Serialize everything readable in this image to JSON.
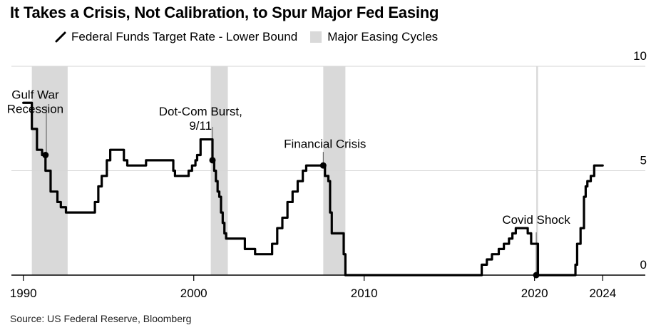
{
  "title": "It Takes a Crisis, Not Calibration, to Spur Major Fed Easing",
  "legend": {
    "line_label": "Federal Funds Target Rate - Lower Bound",
    "band_label": "Major Easing Cycles"
  },
  "source": "Source: US Federal Reserve, Bloomberg",
  "colors": {
    "line": "#000000",
    "band": "#d9d9d9",
    "grid": "#d6d6d6",
    "axis": "#000000"
  },
  "chart_data": {
    "type": "line",
    "title": "It Takes a Crisis, Not Calibration, to Spur Major Fed Easing",
    "xlabel": "",
    "ylabel": "",
    "xlim": [
      1989.3,
      2026.5
    ],
    "ylim": [
      0,
      10
    ],
    "y_axis_side": "right",
    "grid": "horizontal",
    "x_ticks": [
      {
        "value": 1990,
        "label": "1990"
      },
      {
        "value": 2000,
        "label": "2000"
      },
      {
        "value": 2010,
        "label": "2010"
      },
      {
        "value": 2020,
        "label": "2020"
      },
      {
        "value": 2024,
        "label": "2024"
      }
    ],
    "y_ticks": [
      {
        "value": 0,
        "label": "0"
      },
      {
        "value": 5,
        "label": "5"
      },
      {
        "value": 10,
        "label": "10"
      }
    ],
    "series": [
      {
        "name": "Federal Funds Target Rate - Lower Bound",
        "x": [
          1990.0,
          1990.5,
          1990.8,
          1991.0,
          1991.1,
          1991.3,
          1991.6,
          1991.8,
          1992.0,
          1992.2,
          1992.5,
          1992.6,
          1992.7,
          1994.1,
          1994.2,
          1994.4,
          1994.6,
          1994.9,
          1995.1,
          1995.6,
          1995.9,
          1996.1,
          1997.2,
          1998.7,
          1998.8,
          1998.9,
          1999.5,
          1999.7,
          1999.9,
          2000.1,
          2000.2,
          2000.4,
          2001.0,
          2001.1,
          2001.2,
          2001.3,
          2001.4,
          2001.5,
          2001.6,
          2001.7,
          2001.8,
          2001.9,
          2002.0,
          2002.9,
          2003.0,
          2003.5,
          2003.6,
          2004.5,
          2004.6,
          2004.9,
          2005.2,
          2005.5,
          2005.8,
          2006.1,
          2006.4,
          2006.6,
          2007.6,
          2007.7,
          2007.9,
          2008.0,
          2008.1,
          2008.3,
          2008.8,
          2008.9,
          2015.9,
          2016.9,
          2017.2,
          2017.5,
          2017.9,
          2018.2,
          2018.5,
          2018.7,
          2018.9,
          2019.5,
          2019.6,
          2019.8,
          2020.1,
          2020.2,
          2022.2,
          2022.4,
          2022.5,
          2022.7,
          2022.9,
          2023.0,
          2023.1,
          2023.3,
          2023.5,
          2024.0
        ],
        "values": [
          8.25,
          7.0,
          6.0,
          6.0,
          5.75,
          5.0,
          4.0,
          4.0,
          3.5,
          3.25,
          3.0,
          3.0,
          3.0,
          3.0,
          3.5,
          4.25,
          4.75,
          5.5,
          6.0,
          6.0,
          5.5,
          5.25,
          5.5,
          5.5,
          5.0,
          4.75,
          4.75,
          5.0,
          5.25,
          5.5,
          5.75,
          6.5,
          6.5,
          5.5,
          5.0,
          4.5,
          4.0,
          3.75,
          3.0,
          2.5,
          2.0,
          1.75,
          1.75,
          1.75,
          1.25,
          1.25,
          1.0,
          1.0,
          1.5,
          2.25,
          2.75,
          3.5,
          4.0,
          4.5,
          5.0,
          5.25,
          5.25,
          4.75,
          4.5,
          3.0,
          2.0,
          2.0,
          1.0,
          0.0,
          0.0,
          0.5,
          0.75,
          1.0,
          1.25,
          1.5,
          1.75,
          2.0,
          2.25,
          2.25,
          2.0,
          1.5,
          1.5,
          0.0,
          0.0,
          0.5,
          1.5,
          2.25,
          3.75,
          4.25,
          4.5,
          4.75,
          5.25,
          5.25
        ]
      }
    ],
    "easing_bands": [
      {
        "name": "Major Easing Cycles",
        "start": 1990.5,
        "end": 1992.6
      },
      {
        "name": "Major Easing Cycles",
        "start": 2001.0,
        "end": 2002.0
      },
      {
        "name": "Major Easing Cycles",
        "start": 2007.6,
        "end": 2008.9
      },
      {
        "name": "Major Easing Cycles",
        "start": 2020.1,
        "end": 2020.2
      }
    ],
    "annotations": [
      {
        "lines": [
          "Gulf War",
          "Recession"
        ],
        "x": 1991.3,
        "y": 5.75,
        "anchor": "middle"
      },
      {
        "lines": [
          "Dot-Com Burst,",
          "9/11"
        ],
        "x": 2001.1,
        "y": 5.5,
        "anchor": "middle"
      },
      {
        "lines": [
          "Financial Crisis"
        ],
        "x": 2007.6,
        "y": 5.25,
        "anchor": "middle"
      },
      {
        "lines": [
          "Covid Shock"
        ],
        "x": 2020.1,
        "y": 0.0,
        "anchor": "middle"
      }
    ]
  }
}
